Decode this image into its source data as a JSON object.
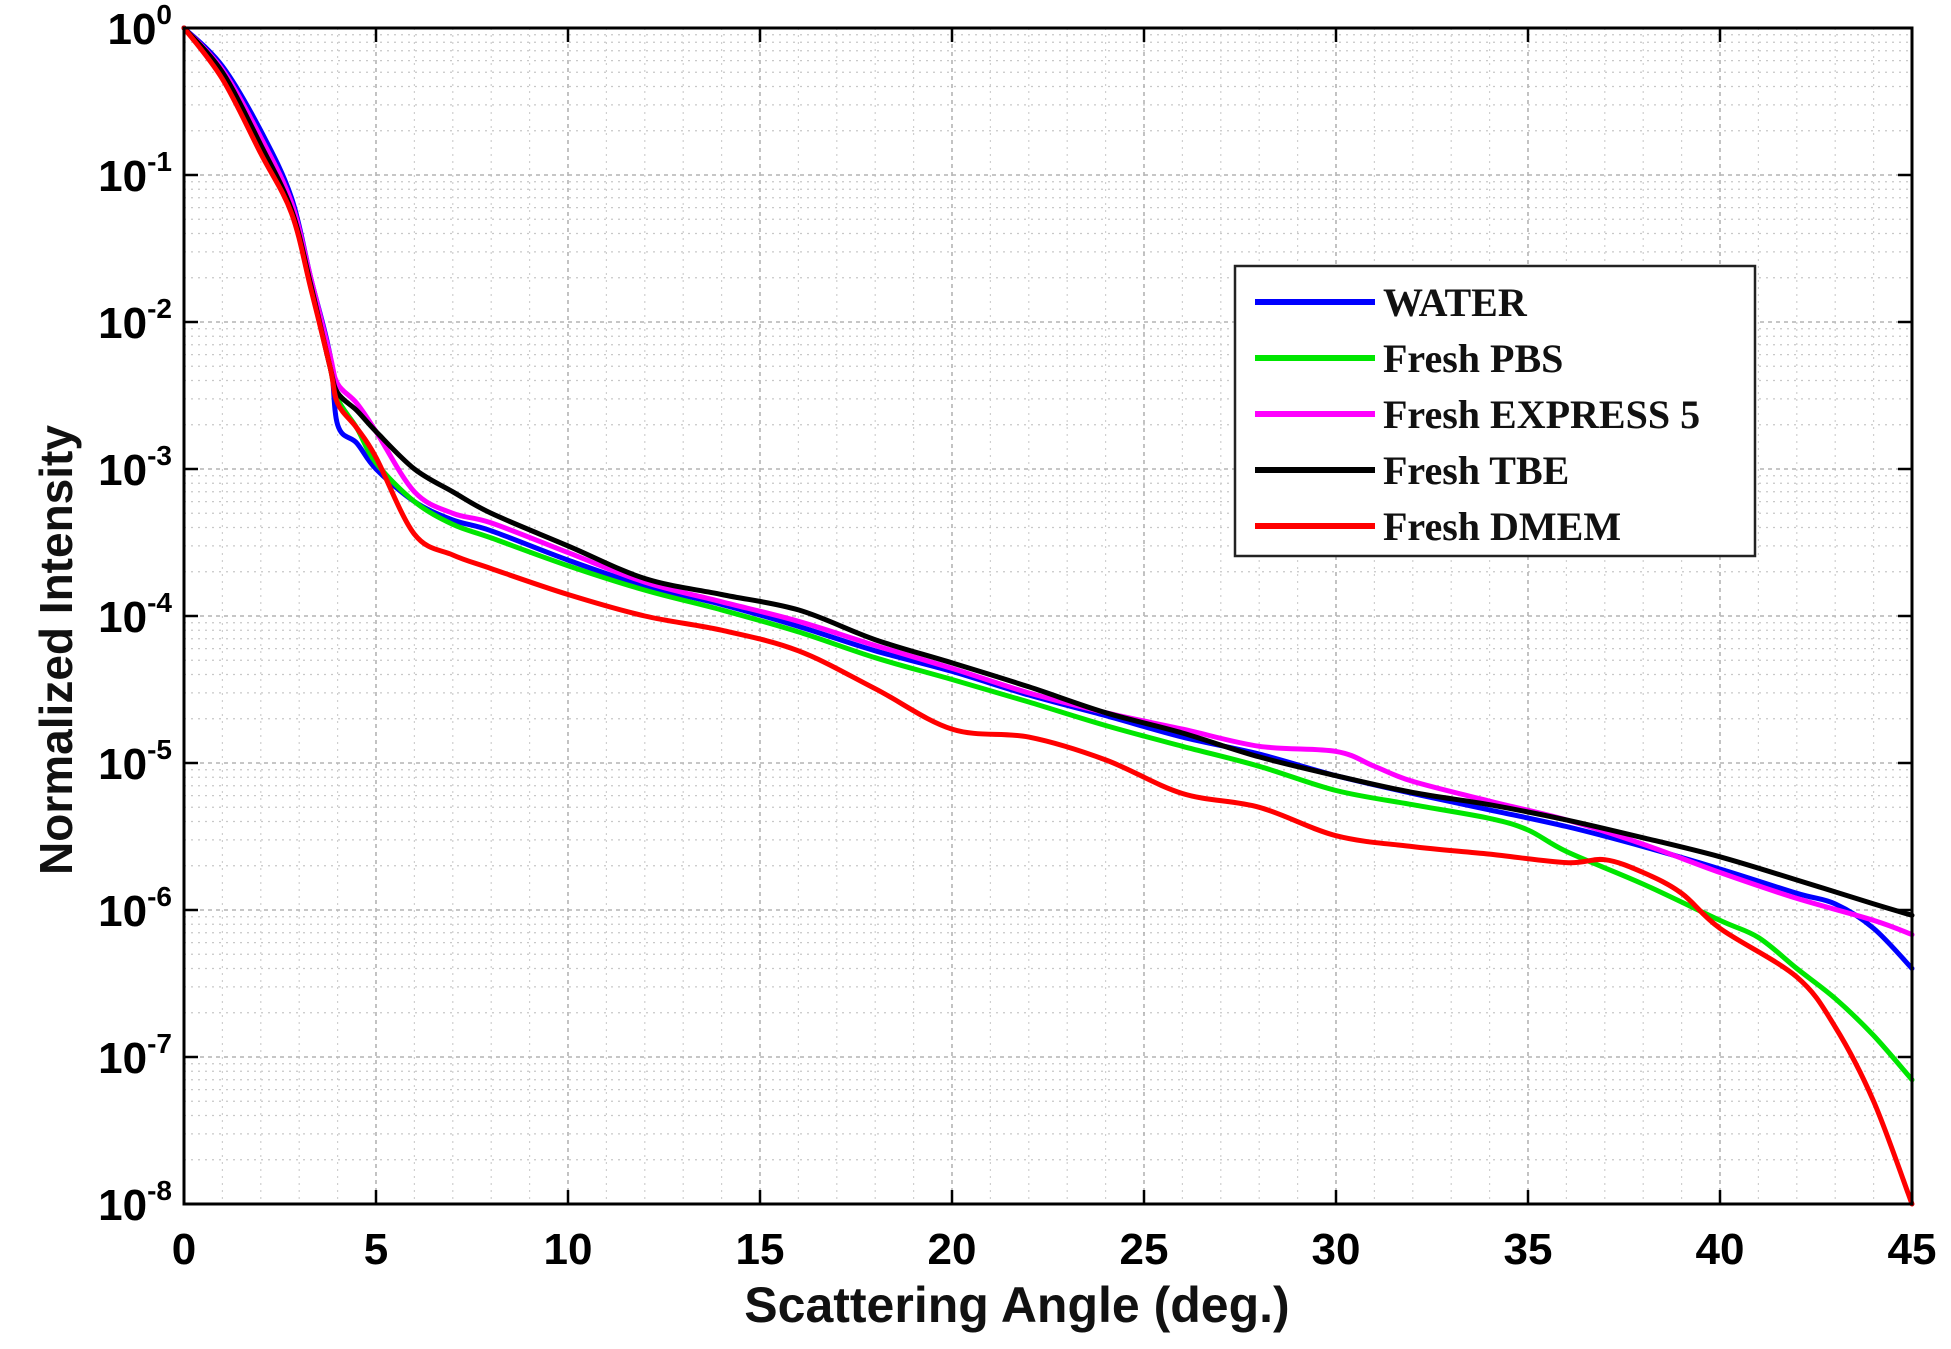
{
  "chart_data": {
    "type": "line",
    "title": "",
    "xlabel": "Scattering Angle (deg.)",
    "ylabel": "Normalized Intensity",
    "xlim": [
      0,
      45
    ],
    "ylim": [
      1e-08,
      1
    ],
    "yscale": "log",
    "grid": true,
    "legend_position": "upper-right",
    "x_ticks": [
      "0",
      "5",
      "10",
      "15",
      "20",
      "25",
      "30",
      "35",
      "40",
      "45"
    ],
    "y_ticks": [
      {
        "base": "10",
        "exp": "0"
      },
      {
        "base": "10",
        "exp": "-1"
      },
      {
        "base": "10",
        "exp": "-2"
      },
      {
        "base": "10",
        "exp": "-3"
      },
      {
        "base": "10",
        "exp": "-4"
      },
      {
        "base": "10",
        "exp": "-5"
      },
      {
        "base": "10",
        "exp": "-6"
      },
      {
        "base": "10",
        "exp": "-7"
      },
      {
        "base": "10",
        "exp": "-8"
      }
    ],
    "series": [
      {
        "name": "WATER",
        "color": "#0000ff",
        "points": [
          [
            0,
            1
          ],
          [
            1,
            0.55
          ],
          [
            2,
            0.2
          ],
          [
            2.8,
            0.07
          ],
          [
            3.3,
            0.02
          ],
          [
            3.8,
            0.006
          ],
          [
            4,
            0.002
          ],
          [
            4.5,
            0.0015
          ],
          [
            5,
            0.001
          ],
          [
            6,
            0.0006
          ],
          [
            7,
            0.00045
          ],
          [
            8,
            0.00038
          ],
          [
            10,
            0.00024
          ],
          [
            12,
            0.00016
          ],
          [
            14,
            0.00012
          ],
          [
            16,
            8.5e-05
          ],
          [
            18,
            5.8e-05
          ],
          [
            20,
            4.2e-05
          ],
          [
            22,
            2.9e-05
          ],
          [
            24,
            2.1e-05
          ],
          [
            26,
            1.5e-05
          ],
          [
            28,
            1.15e-05
          ],
          [
            30,
            8.2e-06
          ],
          [
            32,
            6.2e-06
          ],
          [
            34,
            4.8e-06
          ],
          [
            36,
            3.7e-06
          ],
          [
            38,
            2.7e-06
          ],
          [
            40,
            1.9e-06
          ],
          [
            42,
            1.3e-06
          ],
          [
            43,
            1.1e-06
          ],
          [
            44,
            7.5e-07
          ],
          [
            45,
            4e-07
          ]
        ]
      },
      {
        "name": "Fresh PBS",
        "color": "#00e600",
        "points": [
          [
            0,
            1
          ],
          [
            1,
            0.5
          ],
          [
            2,
            0.17
          ],
          [
            2.8,
            0.06
          ],
          [
            3.3,
            0.018
          ],
          [
            3.8,
            0.005
          ],
          [
            4,
            0.003
          ],
          [
            4.5,
            0.0019
          ],
          [
            5,
            0.0011
          ],
          [
            6,
            0.0006
          ],
          [
            7,
            0.00042
          ],
          [
            8,
            0.00034
          ],
          [
            10,
            0.00022
          ],
          [
            12,
            0.00015
          ],
          [
            14,
            0.00011
          ],
          [
            16,
            7.8e-05
          ],
          [
            18,
            5.2e-05
          ],
          [
            20,
            3.7e-05
          ],
          [
            22,
            2.6e-05
          ],
          [
            24,
            1.8e-05
          ],
          [
            26,
            1.3e-05
          ],
          [
            28,
            9.5e-06
          ],
          [
            30,
            6.5e-06
          ],
          [
            32,
            5.2e-06
          ],
          [
            34,
            4.2e-06
          ],
          [
            35,
            3.5e-06
          ],
          [
            36,
            2.5e-06
          ],
          [
            38,
            1.5e-06
          ],
          [
            40,
            8.5e-07
          ],
          [
            41,
            6.5e-07
          ],
          [
            42,
            4e-07
          ],
          [
            43,
            2.5e-07
          ],
          [
            44,
            1.4e-07
          ],
          [
            45,
            7e-08
          ]
        ]
      },
      {
        "name": "Fresh EXPRESS 5",
        "color": "#ff00ff",
        "points": [
          [
            0,
            1
          ],
          [
            1,
            0.52
          ],
          [
            2,
            0.18
          ],
          [
            2.8,
            0.065
          ],
          [
            3.3,
            0.02
          ],
          [
            3.8,
            0.006
          ],
          [
            4,
            0.0038
          ],
          [
            4.5,
            0.0028
          ],
          [
            5,
            0.0018
          ],
          [
            6,
            0.0007
          ],
          [
            7,
            0.0005
          ],
          [
            8,
            0.00043
          ],
          [
            10,
            0.00027
          ],
          [
            12,
            0.00017
          ],
          [
            14,
            0.000125
          ],
          [
            16,
            9.2e-05
          ],
          [
            18,
            6.3e-05
          ],
          [
            20,
            4.4e-05
          ],
          [
            22,
            3e-05
          ],
          [
            24,
            2.2e-05
          ],
          [
            26,
            1.7e-05
          ],
          [
            28,
            1.3e-05
          ],
          [
            30,
            1.2e-05
          ],
          [
            31,
            9.5e-06
          ],
          [
            32,
            7.5e-06
          ],
          [
            34,
            5.5e-06
          ],
          [
            36,
            4.1e-06
          ],
          [
            38,
            2.8e-06
          ],
          [
            40,
            1.8e-06
          ],
          [
            42,
            1.2e-06
          ],
          [
            44,
            8.5e-07
          ],
          [
            45,
            6.8e-07
          ]
        ]
      },
      {
        "name": "Fresh TBE",
        "color": "#000000",
        "points": [
          [
            0,
            1
          ],
          [
            1,
            0.5
          ],
          [
            2,
            0.16
          ],
          [
            2.8,
            0.058
          ],
          [
            3.3,
            0.018
          ],
          [
            3.8,
            0.005
          ],
          [
            4,
            0.0033
          ],
          [
            4.5,
            0.0025
          ],
          [
            5,
            0.0018
          ],
          [
            6,
            0.001
          ],
          [
            7,
            0.0007
          ],
          [
            8,
            0.0005
          ],
          [
            10,
            0.0003
          ],
          [
            12,
            0.00018
          ],
          [
            14,
            0.00014
          ],
          [
            16,
            0.00011
          ],
          [
            18,
            6.9e-05
          ],
          [
            20,
            4.8e-05
          ],
          [
            22,
            3.3e-05
          ],
          [
            24,
            2.2e-05
          ],
          [
            26,
            1.6e-05
          ],
          [
            28,
            1.1e-05
          ],
          [
            30,
            8.2e-06
          ],
          [
            32,
            6.3e-06
          ],
          [
            34,
            5.2e-06
          ],
          [
            36,
            4.1e-06
          ],
          [
            38,
            3.1e-06
          ],
          [
            40,
            2.3e-06
          ],
          [
            42,
            1.6e-06
          ],
          [
            44,
            1.1e-06
          ],
          [
            45,
            9.2e-07
          ]
        ]
      },
      {
        "name": "Fresh DMEM",
        "color": "#ff0000",
        "points": [
          [
            0,
            1
          ],
          [
            1,
            0.45
          ],
          [
            2,
            0.14
          ],
          [
            2.8,
            0.055
          ],
          [
            3.3,
            0.017
          ],
          [
            3.8,
            0.005
          ],
          [
            4,
            0.0028
          ],
          [
            4.5,
            0.0019
          ],
          [
            5,
            0.0012
          ],
          [
            6,
            0.00036
          ],
          [
            7,
            0.00026
          ],
          [
            8,
            0.00021
          ],
          [
            10,
            0.00014
          ],
          [
            12,
            0.0001
          ],
          [
            14,
            8e-05
          ],
          [
            16,
            5.8e-05
          ],
          [
            18,
            3.2e-05
          ],
          [
            20,
            1.7e-05
          ],
          [
            22,
            1.5e-05
          ],
          [
            24,
            1.05e-05
          ],
          [
            26,
            6.2e-06
          ],
          [
            28,
            5e-06
          ],
          [
            30,
            3.2e-06
          ],
          [
            32,
            2.7e-06
          ],
          [
            34,
            2.4e-06
          ],
          [
            36,
            2.1e-06
          ],
          [
            37,
            2.2e-06
          ],
          [
            38,
            1.8e-06
          ],
          [
            39,
            1.3e-06
          ],
          [
            40,
            7.5e-07
          ],
          [
            42,
            3.5e-07
          ],
          [
            43,
            1.6e-07
          ],
          [
            44,
            5e-08
          ],
          [
            45,
            1e-08
          ]
        ]
      }
    ]
  }
}
